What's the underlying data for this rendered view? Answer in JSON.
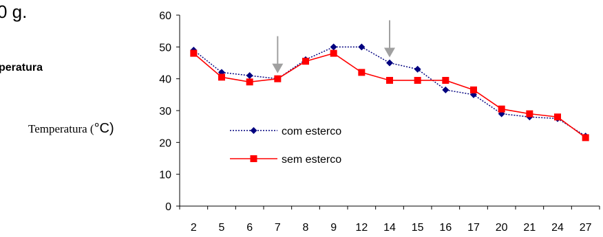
{
  "page": {
    "top_fragment": "0 g.",
    "mid_fragment": "peratura",
    "ylabel_main": "Temperatura (",
    "ylabel_unit": "°C)"
  },
  "chart_data": {
    "type": "line",
    "categories": [
      "2",
      "5",
      "6",
      "7",
      "8",
      "9",
      "12",
      "14",
      "15",
      "16",
      "17",
      "20",
      "21",
      "24",
      "27"
    ],
    "series": [
      {
        "name": "com esterco",
        "color": "#00007f",
        "line_style": "dotted",
        "marker": "diamond",
        "values": [
          49,
          42,
          41,
          40,
          46,
          50,
          50,
          45,
          43,
          36.5,
          35,
          29,
          28,
          27.5,
          22
        ]
      },
      {
        "name": "sem esterco",
        "color": "#ff0000",
        "line_style": "solid",
        "marker": "square",
        "values": [
          48,
          40.5,
          39,
          40,
          45.5,
          48,
          42,
          39.5,
          39.5,
          39.5,
          36.5,
          30.5,
          29,
          28,
          21.5
        ]
      }
    ],
    "ylim": [
      0,
      60
    ],
    "yticks": [
      "0",
      "10",
      "20",
      "30",
      "40",
      "50",
      "60"
    ],
    "legend_placement": "lower-left inside plot",
    "arrows_at_categories": [
      "7",
      "14"
    ],
    "arrow_color": "#a0a0a0",
    "grid": false
  }
}
